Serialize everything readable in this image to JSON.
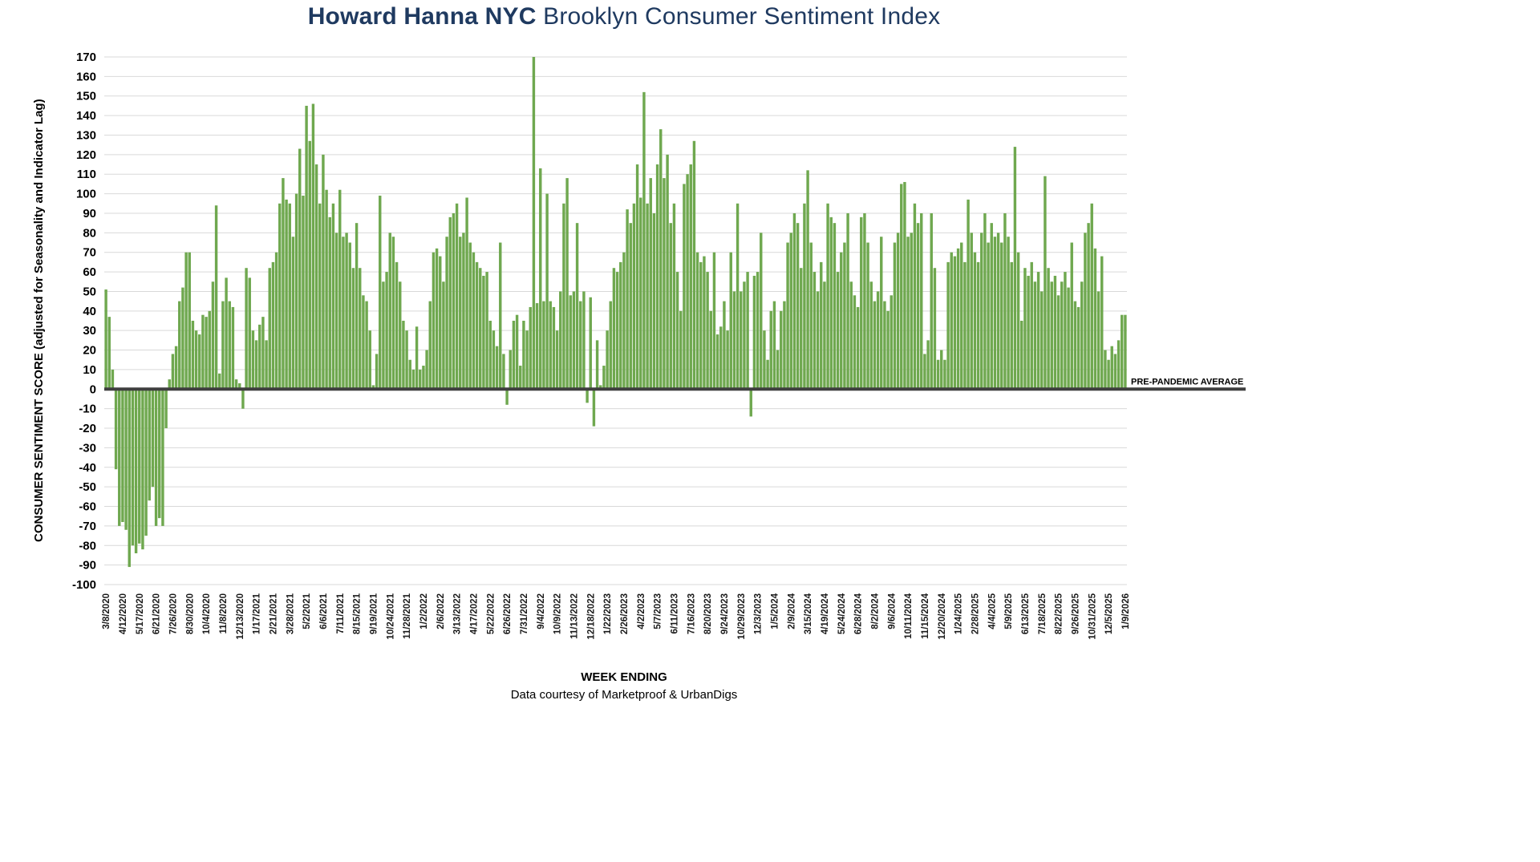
{
  "title": {
    "brand": "Howard Hanna NYC",
    "rest": " Brooklyn Consumer Sentiment Index"
  },
  "footer": {
    "xlabel": "WEEK ENDING",
    "credit": "Data courtesy of Marketproof & UrbanDigs"
  },
  "chart_data": {
    "type": "bar",
    "title": "Howard Hanna NYC Brooklyn Consumer Sentiment Index",
    "xlabel": "WEEK ENDING",
    "ylabel": "CONSUMER SENTIMENT SCORE (adjusted for Seasonality and Indicator Lag)",
    "ylim": [
      -100,
      170
    ],
    "y_tick_step": 10,
    "grid": true,
    "legend": false,
    "bar_color": "#6FA84F",
    "grid_color": "#d9d9d9",
    "zero_line": {
      "value": 0,
      "label": "PRE-PANDEMIC AVERAGE",
      "color": "#3F3F3F"
    },
    "x_tick_every": 5,
    "x_tick_labels": [
      "3/8/2020",
      "4/12/2020",
      "5/17/2020",
      "6/21/2020",
      "7/26/2020",
      "8/30/2020",
      "10/4/2020",
      "11/8/2020",
      "12/13/2020",
      "1/17/2021",
      "2/21/2021",
      "3/28/2021",
      "5/2/2021",
      "6/6/2021",
      "7/11/2021",
      "8/15/2021",
      "9/19/2021",
      "10/24/2021",
      "11/28/2021",
      "1/2/2022",
      "2/6/2022",
      "3/13/2022",
      "4/17/2022",
      "5/22/2022",
      "6/26/2022",
      "7/31/2022",
      "9/4/2022",
      "10/9/2022",
      "11/13/2022",
      "12/18/2022",
      "1/22/2023",
      "2/26/2023",
      "4/2/2023",
      "5/7/2023",
      "6/11/2023",
      "7/16/2023",
      "8/20/2023",
      "9/24/2023",
      "10/29/2023",
      "12/3/2023",
      "1/5/2024",
      "2/9/2024",
      "3/15/2024",
      "4/19/2024",
      "5/24/2024",
      "6/28/2024",
      "8/2/2024",
      "9/6/2024",
      "10/11/2024",
      "11/15/2024",
      "12/20/2024",
      "1/24/2025",
      "2/28/2025",
      "4/4/2025",
      "5/9/2025",
      "6/13/2025",
      "7/18/2025",
      "8/22/2025",
      "9/26/2025",
      "10/31/2025",
      "12/5/2025",
      "1/9/2026"
    ],
    "values": [
      51,
      37,
      10,
      -41,
      -70,
      -68,
      -72,
      -91,
      -80,
      -84,
      -79,
      -82,
      -75,
      -57,
      -50,
      -70,
      -66,
      -70,
      -20,
      5,
      18,
      22,
      45,
      52,
      70,
      70,
      35,
      30,
      28,
      38,
      37,
      40,
      55,
      94,
      8,
      45,
      57,
      45,
      42,
      5,
      3,
      -10,
      62,
      57,
      30,
      25,
      33,
      37,
      25,
      62,
      65,
      70,
      95,
      108,
      97,
      95,
      78,
      100,
      123,
      99,
      145,
      127,
      146,
      115,
      95,
      120,
      102,
      88,
      95,
      80,
      102,
      78,
      80,
      75,
      62,
      85,
      62,
      48,
      45,
      30,
      2,
      18,
      99,
      55,
      60,
      80,
      78,
      65,
      55,
      35,
      30,
      15,
      10,
      32,
      10,
      12,
      20,
      45,
      70,
      72,
      68,
      55,
      78,
      88,
      90,
      95,
      78,
      80,
      98,
      75,
      70,
      65,
      62,
      58,
      60,
      35,
      30,
      22,
      75,
      18,
      -8,
      20,
      35,
      38,
      12,
      35,
      30,
      42,
      170,
      44,
      113,
      45,
      100,
      45,
      42,
      30,
      50,
      95,
      108,
      48,
      50,
      85,
      45,
      50,
      -7,
      47,
      -19,
      25,
      2,
      12,
      30,
      45,
      62,
      60,
      65,
      70,
      92,
      85,
      95,
      115,
      98,
      152,
      95,
      108,
      90,
      115,
      133,
      108,
      120,
      85,
      95,
      60,
      40,
      105,
      110,
      115,
      127,
      70,
      65,
      68,
      60,
      40,
      70,
      28,
      32,
      45,
      30,
      70,
      50,
      95,
      50,
      55,
      60,
      -14,
      58,
      60,
      80,
      30,
      15,
      40,
      45,
      20,
      40,
      45,
      75,
      80,
      90,
      85,
      62,
      95,
      112,
      75,
      60,
      50,
      65,
      55,
      95,
      88,
      85,
      60,
      70,
      75,
      90,
      55,
      48,
      42,
      88,
      90,
      75,
      55,
      45,
      50,
      78,
      45,
      40,
      48,
      75,
      80,
      105,
      106,
      78,
      80,
      95,
      85,
      90,
      18,
      25,
      90,
      62,
      15,
      20,
      15,
      65,
      70,
      68,
      72,
      75,
      65,
      97,
      80,
      70,
      65,
      80,
      90,
      75,
      85,
      78,
      80,
      75,
      90,
      78,
      65,
      124,
      70,
      35,
      62,
      58,
      65,
      55,
      60,
      50,
      109,
      62,
      55,
      58,
      48,
      55,
      60,
      52,
      75,
      45,
      42,
      55,
      80,
      85,
      95,
      72,
      50,
      68,
      20,
      15,
      22,
      18,
      25,
      38,
      38
    ]
  }
}
